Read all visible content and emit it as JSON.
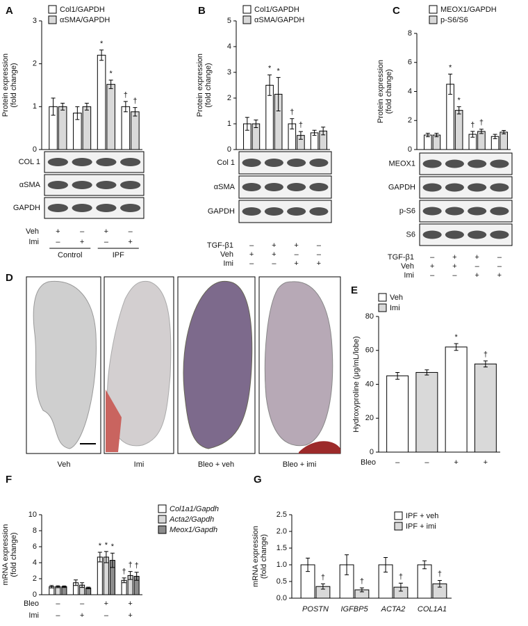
{
  "chart_data": [
    {
      "panel": "A",
      "type": "bar",
      "ylabel": [
        "Protein expression",
        "(fold change)"
      ],
      "ylim": [
        0,
        3
      ],
      "yticks": [
        0,
        1,
        2,
        3
      ],
      "legend": "top",
      "series": [
        {
          "name": "Col1/GAPDH",
          "color": "#ffffff",
          "values": [
            1.0,
            0.85,
            2.2,
            1.0
          ],
          "errors": [
            0.2,
            0.15,
            0.12,
            0.12
          ],
          "annotations": [
            null,
            null,
            "*",
            "†"
          ]
        },
        {
          "name": "αSMA/GAPDH",
          "color": "#d9d9d9",
          "values": [
            1.0,
            1.0,
            1.52,
            0.88
          ],
          "errors": [
            0.08,
            0.08,
            0.1,
            0.1
          ],
          "annotations": [
            null,
            null,
            "*",
            "†"
          ]
        }
      ],
      "blots": [
        "COL 1",
        "αSMA",
        "GAPDH"
      ],
      "conditions": [
        {
          "label": "Veh",
          "marks": [
            "+",
            "–",
            "+",
            "–"
          ]
        },
        {
          "label": "Imi",
          "marks": [
            "–",
            "+",
            "–",
            "+"
          ]
        }
      ],
      "groups": [
        "Control",
        "IPF"
      ]
    },
    {
      "panel": "B",
      "type": "bar",
      "ylabel": [
        "Protein expression",
        "(fold change)"
      ],
      "ylim": [
        0,
        5
      ],
      "yticks": [
        0,
        1,
        2,
        3,
        4,
        5
      ],
      "legend": "top",
      "series": [
        {
          "name": "Col1/GAPDH",
          "color": "#ffffff",
          "values": [
            1.0,
            2.5,
            1.0,
            0.65
          ],
          "errors": [
            0.25,
            0.4,
            0.2,
            0.1
          ],
          "annotations": [
            null,
            "*",
            "†",
            null
          ]
        },
        {
          "name": "αSMA/GAPDH",
          "color": "#d9d9d9",
          "values": [
            1.0,
            2.15,
            0.55,
            0.72
          ],
          "errors": [
            0.15,
            0.65,
            0.15,
            0.15
          ],
          "annotations": [
            null,
            "*",
            "†",
            null
          ]
        }
      ],
      "blots": [
        "Col 1",
        "αSMA",
        "GAPDH"
      ],
      "conditions": [
        {
          "label": "TGF-β1",
          "marks": [
            "–",
            "+",
            "+",
            "–"
          ]
        },
        {
          "label": "Veh",
          "marks": [
            "+",
            "+",
            "–",
            "–"
          ]
        },
        {
          "label": "Imi",
          "marks": [
            "–",
            "–",
            "+",
            "+"
          ]
        }
      ]
    },
    {
      "panel": "C",
      "type": "bar",
      "ylabel": [
        "Protein expression",
        "(fold change)"
      ],
      "ylim": [
        0,
        8
      ],
      "yticks": [
        0,
        2,
        4,
        6,
        8
      ],
      "legend": "top",
      "series": [
        {
          "name": "MEOX1/GAPDH",
          "color": "#ffffff",
          "values": [
            1.0,
            4.5,
            1.05,
            0.9
          ],
          "errors": [
            0.12,
            0.7,
            0.2,
            0.15
          ],
          "annotations": [
            null,
            "*",
            "†",
            null
          ]
        },
        {
          "name": "p-S6/S6",
          "color": "#d9d9d9",
          "values": [
            1.0,
            2.7,
            1.25,
            1.2
          ],
          "errors": [
            0.12,
            0.25,
            0.15,
            0.12
          ],
          "annotations": [
            null,
            "*",
            "†",
            null
          ]
        }
      ],
      "blots": [
        "MEOX1",
        "GAPDH",
        "p-S6",
        "S6"
      ],
      "conditions": [
        {
          "label": "TGF-β1",
          "marks": [
            "–",
            "+",
            "+",
            "–"
          ]
        },
        {
          "label": "Veh",
          "marks": [
            "+",
            "+",
            "–",
            "–"
          ]
        },
        {
          "label": "Imi",
          "marks": [
            "–",
            "–",
            "+",
            "+"
          ]
        }
      ]
    },
    {
      "panel": "E",
      "type": "bar",
      "ylabel": [
        "Hydroxyproline (μg/mL/lobe)"
      ],
      "ylim": [
        0,
        80
      ],
      "yticks": [
        0,
        20,
        40,
        60,
        80
      ],
      "legend": "top-left",
      "series": [
        {
          "name": "Veh",
          "color": "#ffffff",
          "values": [
            45,
            null,
            62,
            null
          ],
          "errors": [
            2,
            null,
            2,
            null
          ],
          "annotations": [
            null,
            null,
            "*",
            null
          ]
        },
        {
          "name": "Imi",
          "color": "#d9d9d9",
          "values": [
            null,
            47,
            null,
            52
          ],
          "errors": [
            null,
            1.5,
            null,
            1.8
          ],
          "annotations": [
            null,
            null,
            null,
            "†"
          ]
        }
      ],
      "conditions": [
        {
          "label": "Bleo",
          "marks": [
            "–",
            "–",
            "+",
            "+"
          ]
        }
      ]
    },
    {
      "panel": "F",
      "type": "bar",
      "ylabel": [
        "mRNA expression",
        "(fold change)"
      ],
      "ylim": [
        0,
        10
      ],
      "yticks": [
        0,
        2,
        4,
        6,
        8,
        10
      ],
      "legend": "right",
      "series": [
        {
          "name": "Col1a1/Gapdh",
          "color": "#ffffff",
          "values": [
            1.0,
            1.5,
            4.7,
            1.8
          ],
          "errors": [
            0.15,
            0.35,
            0.6,
            0.3
          ],
          "annotations": [
            null,
            null,
            "*",
            "†"
          ]
        },
        {
          "name": "Acta2/Gapdh",
          "color": "#d9d9d9",
          "values": [
            1.0,
            1.2,
            4.7,
            2.4
          ],
          "errors": [
            0.12,
            0.3,
            0.7,
            0.5
          ],
          "annotations": [
            null,
            null,
            "*",
            "†"
          ]
        },
        {
          "name": "Meox1/Gapdh",
          "color": "#8c8c8c",
          "values": [
            1.0,
            0.85,
            4.3,
            2.3
          ],
          "errors": [
            0.1,
            0.1,
            0.9,
            0.5
          ],
          "annotations": [
            null,
            null,
            "*",
            "†"
          ]
        }
      ],
      "conditions": [
        {
          "label": "Bleo",
          "marks": [
            "–",
            "–",
            "+",
            "+"
          ]
        },
        {
          "label": "Imi",
          "marks": [
            "–",
            "+",
            "–",
            "+"
          ]
        }
      ]
    },
    {
      "panel": "G",
      "type": "bar",
      "ylabel": [
        "mRNA expression",
        "(fold change)"
      ],
      "ylim": [
        0,
        2.5
      ],
      "yticks": [
        {
          "value": 0,
          "label": "0.0"
        },
        {
          "value": 0.5,
          "label": "0.5"
        },
        {
          "value": 1,
          "label": "1.0"
        },
        {
          "value": 1.5,
          "label": "1.5"
        },
        {
          "value": 2,
          "label": "2.0"
        },
        {
          "value": 2.5,
          "label": "2.5"
        }
      ],
      "legend": "top-right",
      "categories": [
        "POSTN",
        "IGFBP5",
        "ACTA2",
        "COL1A1"
      ],
      "series": [
        {
          "name": "IPF + veh",
          "color": "#ffffff",
          "values": [
            1.0,
            1.0,
            1.0,
            1.0
          ],
          "errors": [
            0.2,
            0.3,
            0.22,
            0.12
          ],
          "annotations": [
            null,
            null,
            null,
            null
          ]
        },
        {
          "name": "IPF + imi",
          "color": "#d9d9d9",
          "values": [
            0.35,
            0.25,
            0.33,
            0.43
          ],
          "errors": [
            0.08,
            0.06,
            0.12,
            0.1
          ],
          "annotations": [
            "†",
            "†",
            "†",
            "†"
          ]
        }
      ]
    }
  ],
  "histology": {
    "panel": "D",
    "captions": [
      "Veh",
      "Imi",
      "Bleo + veh",
      "Bleo + imi"
    ]
  }
}
